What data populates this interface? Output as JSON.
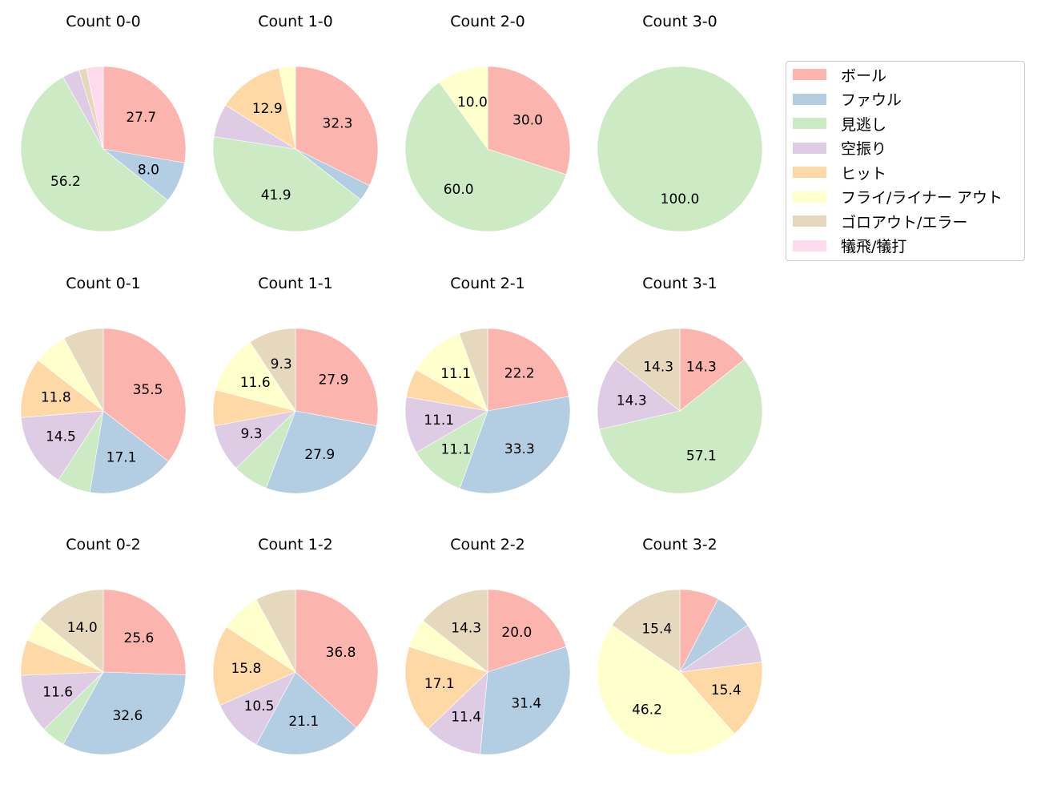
{
  "chart_data": {
    "type": "pie",
    "title": "",
    "legend": {
      "position": "upper-right",
      "entries": [
        "ボール",
        "ファウル",
        "見逃し",
        "空振り",
        "ヒット",
        "フライ/ライナー アウト",
        "ゴロアウト/エラー",
        "犠飛/犠打"
      ]
    },
    "colors": [
      "#fbb4ae",
      "#b3cde3",
      "#ccebc5",
      "#decbe4",
      "#fed9a6",
      "#ffffcc",
      "#e5d8bd",
      "#fddaec"
    ],
    "categories": [
      "ボール",
      "ファウル",
      "見逃し",
      "空振り",
      "ヒット",
      "フライ/ライナー アウト",
      "ゴロアウト/エラー",
      "犠飛/犠打"
    ],
    "label_threshold": 8.0,
    "pies": [
      {
        "title": "Count 0-0",
        "values": [
          27.7,
          8.0,
          56.2,
          3.3,
          0,
          0,
          1.5,
          3.3
        ]
      },
      {
        "title": "Count 1-0",
        "values": [
          32.3,
          3.2,
          41.9,
          6.5,
          12.9,
          3.2,
          0,
          0
        ]
      },
      {
        "title": "Count 2-0",
        "values": [
          30.0,
          0,
          60.0,
          0,
          0,
          10.0,
          0,
          0
        ]
      },
      {
        "title": "Count 3-0",
        "values": [
          0,
          0,
          100.0,
          0,
          0,
          0,
          0,
          0
        ]
      },
      {
        "title": "Count 0-1",
        "values": [
          35.5,
          17.1,
          6.6,
          14.5,
          11.8,
          6.6,
          7.9,
          0
        ]
      },
      {
        "title": "Count 1-1",
        "values": [
          27.9,
          27.9,
          7.0,
          9.3,
          7.0,
          11.6,
          9.3,
          0
        ]
      },
      {
        "title": "Count 2-1",
        "values": [
          22.2,
          33.3,
          11.1,
          11.1,
          5.6,
          11.1,
          5.6,
          0
        ]
      },
      {
        "title": "Count 3-1",
        "values": [
          14.3,
          0,
          57.1,
          14.3,
          0,
          0,
          14.3,
          0
        ]
      },
      {
        "title": "Count 0-2",
        "values": [
          25.6,
          32.6,
          4.7,
          11.6,
          7.0,
          4.7,
          14.0,
          0
        ]
      },
      {
        "title": "Count 1-2",
        "values": [
          36.8,
          21.1,
          0,
          10.5,
          15.8,
          7.9,
          7.9,
          0
        ]
      },
      {
        "title": "Count 2-2",
        "values": [
          20.0,
          31.4,
          0,
          11.4,
          17.1,
          5.7,
          14.3,
          0
        ]
      },
      {
        "title": "Count 3-2",
        "values": [
          7.7,
          7.7,
          0,
          7.7,
          15.4,
          46.2,
          15.4,
          0
        ]
      }
    ],
    "labels_shown": [
      [
        "27.7",
        "8.0",
        "56.2"
      ],
      [
        "32.3",
        "41.9",
        "12.9"
      ],
      [
        "30.0",
        "60.0",
        "10.0"
      ],
      [
        "100.0"
      ],
      [
        "35.5",
        "17.1",
        "14.5",
        "11.8"
      ],
      [
        "27.9",
        "27.9",
        "9.3",
        "11.6",
        "9.3"
      ],
      [
        "22.2",
        "33.3",
        "11.1",
        "11.1",
        "11.1"
      ],
      [
        "14.3",
        "57.1",
        "14.3",
        "14.3"
      ],
      [
        "25.6",
        "32.6",
        "11.6",
        "14.0"
      ],
      [
        "36.8",
        "21.1",
        "10.5",
        "15.8"
      ],
      [
        "20.0",
        "31.4",
        "11.4",
        "17.1",
        "14.3"
      ],
      [
        "15.4",
        "46.2",
        "15.4"
      ]
    ]
  }
}
